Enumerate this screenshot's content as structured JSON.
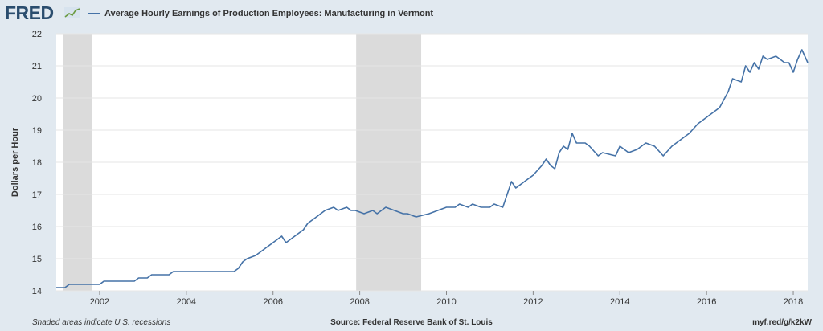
{
  "header": {
    "logo_text": "FRED",
    "logo_mark_icon": "trend-line-icon"
  },
  "footer": {
    "note": "Shaded areas indicate U.S. recessions",
    "source": "Source: Federal Reserve Bank of St. Louis",
    "link": "myf.red/g/k2kW"
  },
  "colors": {
    "series": "#4572a7",
    "recession": "#dbdbdb",
    "grid": "#e6e6e6",
    "frame_bg": "#e1e9f0",
    "plot_bg": "#ffffff"
  },
  "chart_data": {
    "type": "line",
    "title": "",
    "ylabel": "Dollars per Hour",
    "xlabel": "",
    "ylim": [
      14,
      22
    ],
    "xlim": [
      2001.0,
      2018.333
    ],
    "y_ticks": [
      "14",
      "15",
      "16",
      "17",
      "18",
      "19",
      "20",
      "21",
      "22"
    ],
    "x_ticks": [
      "2002",
      "2004",
      "2006",
      "2008",
      "2010",
      "2012",
      "2014",
      "2016",
      "2018"
    ],
    "grid": true,
    "legend_position": "top-left",
    "recessions": [
      {
        "start": 2001.167,
        "end": 2001.833
      },
      {
        "start": 2007.917,
        "end": 2009.417
      }
    ],
    "series": [
      {
        "name": "Average Hourly Earnings of Production Employees: Manufacturing in Vermont",
        "x": [
          2001.0,
          2001.2,
          2001.3,
          2002.0,
          2002.1,
          2002.8,
          2002.9,
          2003.1,
          2003.2,
          2003.6,
          2003.7,
          2005.1,
          2005.2,
          2005.3,
          2005.4,
          2005.6,
          2005.8,
          2006.0,
          2006.1,
          2006.2,
          2006.3,
          2006.5,
          2006.7,
          2006.8,
          2007.0,
          2007.2,
          2007.4,
          2007.5,
          2007.7,
          2007.8,
          2007.9,
          2008.1,
          2008.3,
          2008.4,
          2008.5,
          2008.6,
          2008.8,
          2009.0,
          2009.1,
          2009.3,
          2009.6,
          2009.8,
          2010.0,
          2010.2,
          2010.3,
          2010.5,
          2010.6,
          2010.8,
          2011.0,
          2011.1,
          2011.3,
          2011.4,
          2011.5,
          2011.6,
          2011.7,
          2011.9,
          2012.0,
          2012.2,
          2012.3,
          2012.4,
          2012.5,
          2012.6,
          2012.7,
          2012.8,
          2012.9,
          2013.0,
          2013.2,
          2013.3,
          2013.5,
          2013.6,
          2013.9,
          2014.0,
          2014.2,
          2014.4,
          2014.5,
          2014.6,
          2014.8,
          2015.0,
          2015.2,
          2015.4,
          2015.6,
          2015.8,
          2016.0,
          2016.2,
          2016.3,
          2016.5,
          2016.6,
          2016.8,
          2016.9,
          2017.0,
          2017.1,
          2017.2,
          2017.3,
          2017.4,
          2017.6,
          2017.8,
          2017.9,
          2018.0,
          2018.1,
          2018.2,
          2018.333
        ],
        "y": [
          14.1,
          14.1,
          14.2,
          14.2,
          14.3,
          14.3,
          14.4,
          14.4,
          14.5,
          14.5,
          14.6,
          14.6,
          14.7,
          14.9,
          15.0,
          15.1,
          15.3,
          15.5,
          15.6,
          15.7,
          15.5,
          15.7,
          15.9,
          16.1,
          16.3,
          16.5,
          16.6,
          16.5,
          16.6,
          16.5,
          16.5,
          16.4,
          16.5,
          16.4,
          16.5,
          16.6,
          16.5,
          16.4,
          16.4,
          16.3,
          16.4,
          16.5,
          16.6,
          16.6,
          16.7,
          16.6,
          16.7,
          16.6,
          16.6,
          16.7,
          16.6,
          17.0,
          17.4,
          17.2,
          17.3,
          17.5,
          17.6,
          17.9,
          18.1,
          17.9,
          17.8,
          18.3,
          18.5,
          18.4,
          18.9,
          18.6,
          18.6,
          18.5,
          18.2,
          18.3,
          18.2,
          18.5,
          18.3,
          18.4,
          18.5,
          18.6,
          18.5,
          18.2,
          18.5,
          18.7,
          18.9,
          19.2,
          19.4,
          19.6,
          19.7,
          20.2,
          20.6,
          20.5,
          21.0,
          20.8,
          21.1,
          20.9,
          21.3,
          21.2,
          21.3,
          21.1,
          21.1,
          20.8,
          21.2,
          21.5,
          21.1
        ]
      }
    ]
  }
}
